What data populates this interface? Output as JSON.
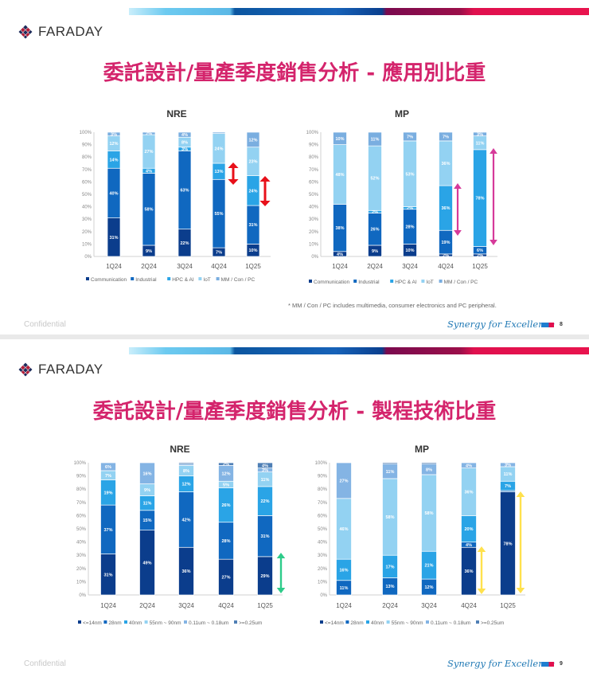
{
  "slides": [
    {
      "logo_text": "FARADAY",
      "title": "委託設計/量產季度銷售分析 - 應用別比重",
      "footnote": "* MM / Con / PC includes multimedia, consumer electronics and PC peripheral.",
      "confidential": "Confidential",
      "tagline": "Synergy for Excellence",
      "page_number": "8"
    },
    {
      "logo_text": "FARADAY",
      "title": "委託設計/量產季度銷售分析 - 製程技術比重",
      "confidential": "Confidential",
      "tagline": "Synergy for Excellence",
      "page_number": "9"
    }
  ],
  "colors": {
    "title": "#d4246c",
    "arrow_red": "#e8101a",
    "arrow_magenta": "#d63a9a",
    "arrow_green": "#2ecc8a",
    "arrow_yellow": "#ffe14d"
  },
  "chart_data": [
    {
      "type": "bar",
      "stacked": true,
      "title": "NRE",
      "categories": [
        "1Q24",
        "2Q24",
        "3Q24",
        "4Q24",
        "1Q25"
      ],
      "ylim": [
        0,
        100
      ],
      "yticks": [
        "0%",
        "10%",
        "20%",
        "30%",
        "40%",
        "50%",
        "60%",
        "70%",
        "80%",
        "90%",
        "100%"
      ],
      "legend": "bottom",
      "series": [
        {
          "name": "Communication",
          "color": "#0b3d8c",
          "values": [
            31,
            9,
            22,
            7,
            10
          ]
        },
        {
          "name": "Industrial",
          "color": "#1068c0",
          "values": [
            40,
            58,
            63,
            55,
            31
          ]
        },
        {
          "name": "HPC & AI",
          "color": "#2aa4e6",
          "values": [
            14,
            4,
            3,
            13,
            24
          ]
        },
        {
          "name": "IoT",
          "color": "#93d2f2",
          "values": [
            12,
            27,
            8,
            24,
            23
          ]
        },
        {
          "name": "MM / Con / PC",
          "color": "#7aaee0",
          "values": [
            3,
            2,
            4,
            1,
            12
          ]
        }
      ]
    },
    {
      "type": "bar",
      "stacked": true,
      "title": "MP",
      "categories": [
        "1Q24",
        "2Q24",
        "3Q24",
        "4Q24",
        "1Q25"
      ],
      "ylim": [
        0,
        100
      ],
      "yticks": [
        "0%",
        "10%",
        "20%",
        "30%",
        "40%",
        "50%",
        "60%",
        "70%",
        "80%",
        "90%",
        "100%"
      ],
      "legend": "bottom",
      "series": [
        {
          "name": "Communication",
          "color": "#0b3d8c",
          "values": [
            4,
            9,
            10,
            2,
            2
          ]
        },
        {
          "name": "Industrial",
          "color": "#1068c0",
          "values": [
            38,
            26,
            28,
            19,
            6
          ]
        },
        {
          "name": "HPC & AI",
          "color": "#2aa4e6",
          "values": [
            0,
            2,
            2,
            36,
            78
          ]
        },
        {
          "name": "IoT",
          "color": "#93d2f2",
          "values": [
            48,
            52,
            53,
            36,
            11
          ]
        },
        {
          "name": "MM / Con / PC",
          "color": "#7aaee0",
          "values": [
            10,
            11,
            7,
            7,
            3
          ]
        }
      ]
    },
    {
      "type": "bar",
      "stacked": true,
      "title": "NRE",
      "categories": [
        "1Q24",
        "2Q24",
        "3Q24",
        "4Q24",
        "1Q25"
      ],
      "ylim": [
        0,
        100
      ],
      "yticks": [
        "0%",
        "10%",
        "20%",
        "30%",
        "40%",
        "50%",
        "60%",
        "70%",
        "80%",
        "90%",
        "100%"
      ],
      "legend": "bottom",
      "series": [
        {
          "name": "<=14nm",
          "color": "#0b3d8c",
          "values": [
            31,
            49,
            36,
            27,
            29
          ]
        },
        {
          "name": "28nm",
          "color": "#1068c0",
          "values": [
            37,
            15,
            42,
            28,
            31
          ]
        },
        {
          "name": "40nm",
          "color": "#2aa4e6",
          "values": [
            19,
            11,
            12,
            26,
            22
          ]
        },
        {
          "name": "55nm ~ 90nm",
          "color": "#93d2f2",
          "values": [
            7,
            9,
            8,
            5,
            11
          ]
        },
        {
          "name": "0.11um ~ 0.18um",
          "color": "#84b4e4",
          "values": [
            6,
            16,
            1,
            12,
            3
          ]
        },
        {
          "name": ">=0.25um",
          "color": "#4f7fb5",
          "values": [
            0,
            0,
            1,
            2,
            4
          ]
        }
      ]
    },
    {
      "type": "bar",
      "stacked": true,
      "title": "MP",
      "categories": [
        "1Q24",
        "2Q24",
        "3Q24",
        "4Q24",
        "1Q25"
      ],
      "ylim": [
        0,
        100
      ],
      "yticks": [
        "0%",
        "10%",
        "20%",
        "30%",
        "40%",
        "50%",
        "60%",
        "70%",
        "80%",
        "90%",
        "100%"
      ],
      "legend": "bottom",
      "series": [
        {
          "name": "<=14nm",
          "color": "#0b3d8c",
          "values": [
            0,
            0,
            0,
            36,
            78
          ]
        },
        {
          "name": "28nm",
          "color": "#1068c0",
          "values": [
            11,
            13,
            12,
            4,
            1
          ]
        },
        {
          "name": "40nm",
          "color": "#2aa4e6",
          "values": [
            16,
            17,
            21,
            20,
            7
          ]
        },
        {
          "name": "55nm ~ 90nm",
          "color": "#93d2f2",
          "values": [
            46,
            58,
            58,
            36,
            11
          ]
        },
        {
          "name": "0.11um ~ 0.18um",
          "color": "#84b4e4",
          "values": [
            27,
            11,
            8,
            4,
            3
          ]
        },
        {
          "name": ">=0.25um",
          "color": "#4f7fb5",
          "values": [
            0,
            1,
            1,
            0,
            0
          ]
        }
      ]
    }
  ]
}
